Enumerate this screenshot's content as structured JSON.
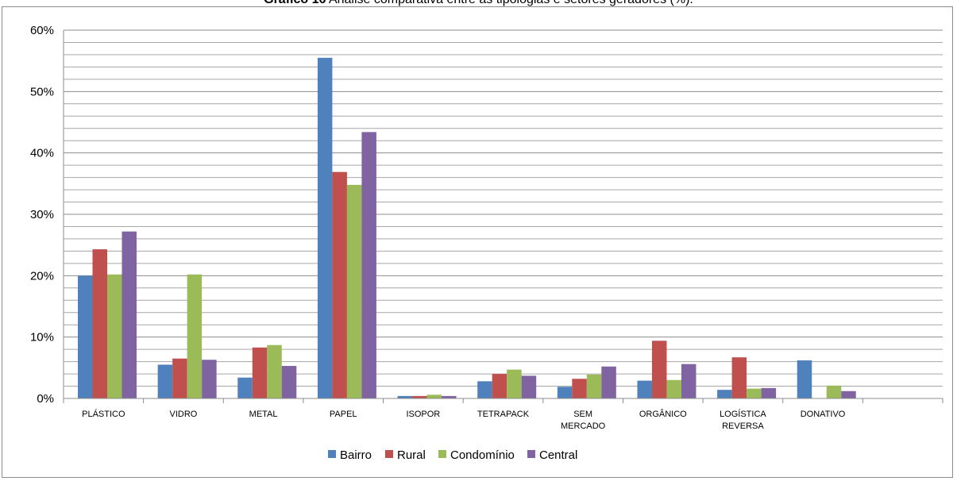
{
  "caption": {
    "label": "Gráfico 16",
    "text": "Análise comparativa entre as tipologias e setores geradores (%)."
  },
  "chart_data": {
    "type": "bar",
    "title": "",
    "xlabel": "",
    "ylabel": "",
    "ylim": [
      0,
      60
    ],
    "yticks": [
      0,
      10,
      20,
      30,
      40,
      50,
      60
    ],
    "ytick_labels": [
      "0%",
      "10%",
      "20%",
      "30%",
      "40%",
      "50%",
      "60%"
    ],
    "grid": true,
    "legend_position": "bottom",
    "categories": [
      [
        "PLÁSTICO"
      ],
      [
        "VIDRO"
      ],
      [
        "METAL"
      ],
      [
        "PAPEL"
      ],
      [
        "ISOPOR"
      ],
      [
        "TETRAPACK"
      ],
      [
        "SEM",
        "MERCADO"
      ],
      [
        "ORGÂNICO"
      ],
      [
        "LOGÍSTICA",
        "REVERSA"
      ],
      [
        "DONATIVO"
      ],
      [
        ""
      ]
    ],
    "series": [
      {
        "name": "Bairro",
        "color": "#4f81bd",
        "values": [
          20.0,
          5.5,
          3.4,
          55.5,
          0.4,
          2.8,
          1.9,
          2.9,
          1.4,
          6.2,
          null
        ]
      },
      {
        "name": "Rural",
        "color": "#c0504d",
        "values": [
          24.3,
          6.5,
          8.3,
          36.9,
          0.4,
          4.0,
          3.2,
          9.4,
          6.7,
          0,
          null
        ]
      },
      {
        "name": "Condomínio",
        "color": "#9bbb59",
        "values": [
          20.2,
          20.2,
          8.7,
          34.8,
          0.6,
          4.7,
          3.9,
          3.0,
          1.6,
          2.1,
          null
        ]
      },
      {
        "name": "Central",
        "color": "#8064a2",
        "values": [
          27.2,
          6.3,
          5.3,
          43.4,
          0.4,
          3.7,
          5.2,
          5.6,
          1.7,
          1.2,
          null
        ]
      }
    ]
  }
}
